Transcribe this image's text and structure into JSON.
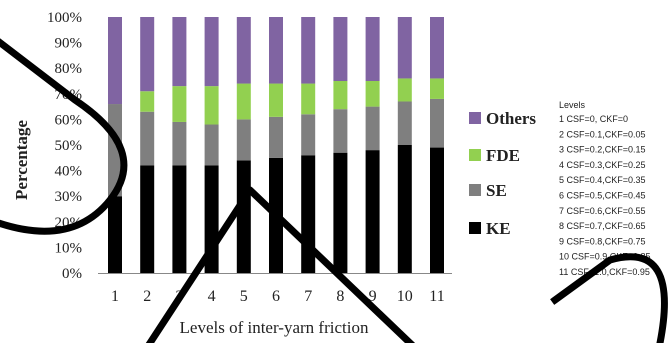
{
  "chart_data": {
    "type": "bar",
    "stacked": true,
    "xlabel": "Levels of inter-yarn friction",
    "ylabel": "Percentage",
    "categories": [
      "1",
      "2",
      "3",
      "4",
      "5",
      "6",
      "7",
      "8",
      "9",
      "10",
      "11"
    ],
    "ylim": [
      0,
      100
    ],
    "y_ticks": [
      "0%",
      "10%",
      "20%",
      "30%",
      "40%",
      "50%",
      "60%",
      "70%",
      "80%",
      "90%",
      "100%"
    ],
    "series": [
      {
        "name": "KE",
        "color": "#000000",
        "values": [
          30,
          42,
          42,
          42,
          44,
          45,
          46,
          47,
          48,
          50,
          49
        ]
      },
      {
        "name": "SE",
        "color": "#7f7f7f",
        "values": [
          36,
          21,
          17,
          16,
          16,
          16,
          16,
          17,
          17,
          17,
          19
        ]
      },
      {
        "name": "FDE",
        "color": "#92d050",
        "values": [
          0,
          8,
          14,
          15,
          14,
          13,
          12,
          11,
          10,
          9,
          8
        ]
      },
      {
        "name": "Others",
        "color": "#8064a2",
        "values": [
          34,
          29,
          27,
          27,
          26,
          26,
          26,
          25,
          25,
          24,
          24
        ]
      }
    ],
    "legend_position": "right",
    "grid": false
  },
  "legend_order": [
    "Others",
    "FDE",
    "SE",
    "KE"
  ],
  "notes": {
    "title": "Levels",
    "lines": [
      "1 CSF=0, CKF=0",
      "2 CSF=0.1,CKF=0.05",
      "3 CSF=0.2,CKF=0.15",
      "4 CSF=0.3,CKF=0.25",
      "5 CSF=0.4,CKF=0.35",
      "6 CSF=0.5,CKF=0.45",
      "7 CSF=0.6,CKF=0.55",
      "8 CSF=0.7,CKF=0.65",
      "9 CSF=0.8,CKF=0.75",
      "10 CSF=0.9,CKF=0.85",
      "11 CSF=1.0,CKF=0.95"
    ]
  }
}
